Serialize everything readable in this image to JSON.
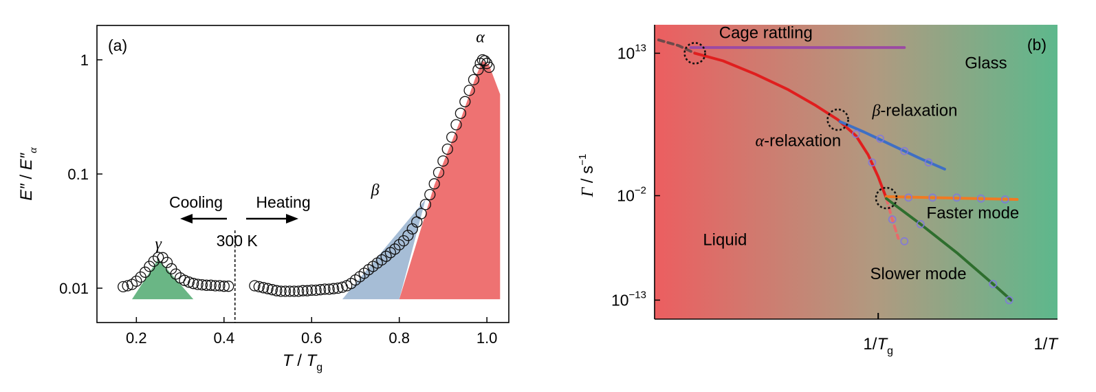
{
  "chart_data": [
    {
      "type": "scatter",
      "panel_label": "(a)",
      "xlabel": "T / Tg",
      "xlabel_parts": {
        "main": "T",
        "sep": " / ",
        "sym": "T",
        "sub": "g"
      },
      "ylabel": "E″ / E″α",
      "ylabel_parts": {
        "num": "E″",
        "sep": " / ",
        "den": "E″",
        "sub": "α"
      },
      "y_scale": "log",
      "xlim": [
        0.11,
        1.05
      ],
      "ylim": [
        0.005,
        2.0
      ],
      "x_ticks": [
        0.2,
        0.4,
        0.6,
        0.8,
        1.0
      ],
      "x_tick_labels": [
        "0.2",
        "0.4",
        "0.6",
        "0.8",
        "1.0"
      ],
      "y_ticks": [
        0.01,
        0.1,
        1
      ],
      "y_tick_labels": [
        "0.01",
        "0.1",
        "1"
      ],
      "grid": false,
      "cooling_label": "Cooling",
      "heating_label": "Heating",
      "divider": {
        "x": 0.425,
        "label": "300 K"
      },
      "peak_labels": {
        "gamma": "γ",
        "beta": "β",
        "alpha": "α"
      },
      "peak_label_pos": {
        "gamma": [
          0.25,
          0.022
        ],
        "beta": [
          0.745,
          0.065
        ],
        "alpha": [
          0.985,
          1.42
        ]
      },
      "peaks": [
        {
          "name": "gamma",
          "color": "#6ab685",
          "base": 0.008,
          "polygon": [
            [
              0.19,
              0.008
            ],
            [
              0.25,
              0.018
            ],
            [
              0.33,
              0.008
            ]
          ]
        },
        {
          "name": "beta",
          "color": "#a6bdd6",
          "base": 0.008,
          "polygon": [
            [
              0.67,
              0.008
            ],
            [
              0.86,
              0.06
            ],
            [
              0.8,
              0.008
            ]
          ]
        },
        {
          "name": "alpha",
          "color": "#ee7272",
          "base": 0.008,
          "polygon": [
            [
              0.8,
              0.008
            ],
            [
              0.88,
              0.08
            ],
            [
              0.94,
              0.3
            ],
            [
              0.975,
              0.72
            ],
            [
              0.99,
              0.98
            ],
            [
              1.005,
              0.9
            ],
            [
              1.03,
              0.5
            ],
            [
              1.03,
              0.008
            ]
          ]
        }
      ],
      "series": [
        {
          "marker": "open-circle",
          "points": [
            [
              0.17,
              0.0103
            ],
            [
              0.18,
              0.0105
            ],
            [
              0.19,
              0.0108
            ],
            [
              0.2,
              0.0115
            ],
            [
              0.21,
              0.0125
            ],
            [
              0.22,
              0.0138
            ],
            [
              0.23,
              0.0155
            ],
            [
              0.24,
              0.0172
            ],
            [
              0.25,
              0.0186
            ],
            [
              0.26,
              0.0185
            ],
            [
              0.27,
              0.0168
            ],
            [
              0.28,
              0.0148
            ],
            [
              0.29,
              0.0133
            ],
            [
              0.3,
              0.0123
            ],
            [
              0.31,
              0.0117
            ],
            [
              0.32,
              0.0113
            ],
            [
              0.33,
              0.011
            ],
            [
              0.34,
              0.0108
            ],
            [
              0.35,
              0.0107
            ],
            [
              0.36,
              0.0106
            ],
            [
              0.37,
              0.0106
            ],
            [
              0.38,
              0.0105
            ],
            [
              0.39,
              0.0105
            ],
            [
              0.4,
              0.0104
            ],
            [
              0.41,
              0.0104
            ],
            [
              0.47,
              0.0105
            ],
            [
              0.48,
              0.0103
            ],
            [
              0.49,
              0.0101
            ],
            [
              0.5,
              0.0099
            ],
            [
              0.51,
              0.0097
            ],
            [
              0.52,
              0.0095
            ],
            [
              0.53,
              0.0094
            ],
            [
              0.54,
              0.0094
            ],
            [
              0.55,
              0.0094
            ],
            [
              0.56,
              0.0094
            ],
            [
              0.57,
              0.0094
            ],
            [
              0.58,
              0.0095
            ],
            [
              0.59,
              0.0095
            ],
            [
              0.6,
              0.0096
            ],
            [
              0.61,
              0.0096
            ],
            [
              0.62,
              0.0097
            ],
            [
              0.63,
              0.0098
            ],
            [
              0.64,
              0.0098
            ],
            [
              0.65,
              0.0099
            ],
            [
              0.66,
              0.01
            ],
            [
              0.67,
              0.0102
            ],
            [
              0.68,
              0.0105
            ],
            [
              0.69,
              0.011
            ],
            [
              0.7,
              0.0118
            ],
            [
              0.71,
              0.0126
            ],
            [
              0.72,
              0.0135
            ],
            [
              0.73,
              0.0145
            ],
            [
              0.74,
              0.0155
            ],
            [
              0.75,
              0.0166
            ],
            [
              0.76,
              0.0177
            ],
            [
              0.77,
              0.019
            ],
            [
              0.78,
              0.0205
            ],
            [
              0.79,
              0.022
            ],
            [
              0.8,
              0.024
            ],
            [
              0.81,
              0.026
            ],
            [
              0.82,
              0.029
            ],
            [
              0.83,
              0.033
            ],
            [
              0.84,
              0.038
            ],
            [
              0.85,
              0.045
            ],
            [
              0.86,
              0.054
            ],
            [
              0.87,
              0.066
            ],
            [
              0.88,
              0.082
            ],
            [
              0.89,
              0.103
            ],
            [
              0.9,
              0.13
            ],
            [
              0.91,
              0.165
            ],
            [
              0.92,
              0.21
            ],
            [
              0.93,
              0.27
            ],
            [
              0.94,
              0.34
            ],
            [
              0.95,
              0.43
            ],
            [
              0.96,
              0.54
            ],
            [
              0.97,
              0.67
            ],
            [
              0.98,
              0.82
            ],
            [
              0.985,
              0.93
            ],
            [
              0.99,
              1.0
            ],
            [
              0.995,
              0.98
            ],
            [
              1.0,
              0.93
            ],
            [
              1.005,
              0.86
            ]
          ]
        }
      ]
    },
    {
      "type": "line",
      "panel_label": "(b)",
      "xlabel": "1/T",
      "xlabel_parts": {
        "main": "1/",
        "sym": "T"
      },
      "x_tick_label": {
        "main": "1/",
        "sym": "T",
        "sub": "g"
      },
      "x_tick_value": 0.555,
      "ylabel": "Γ / s−1",
      "ylabel_parts": {
        "sym": "Γ",
        "sep": " / s",
        "sup": "−1"
      },
      "y_scale": "log",
      "xlim": [
        0,
        1
      ],
      "ylim": [
        -15,
        16
      ],
      "y_ticks": [
        13,
        -2,
        -13
      ],
      "y_tick_labels": [
        {
          "base": "10",
          "exp": "13"
        },
        {
          "base": "10",
          "exp": "−2"
        },
        {
          "base": "10",
          "exp": "−13"
        }
      ],
      "background": {
        "left": "#ec5e60",
        "mid": "#b09a80",
        "right": "#5db88c"
      },
      "region_labels": {
        "liquid": "Liquid",
        "glass": "Glass",
        "cage": "Cage rattling",
        "alpha": "-relaxation",
        "alpha_sym": "α",
        "beta": "-relaxation",
        "beta_sym": "β",
        "faster": "Faster mode",
        "slower": "Slower mode"
      },
      "label_pos": {
        "liquid": [
          0.12,
          -7.2
        ],
        "glass": [
          0.77,
          11.4
        ],
        "cage": [
          0.16,
          14.6
        ],
        "alpha": [
          0.25,
          3.2
        ],
        "beta": [
          0.54,
          6.4
        ],
        "faster": [
          0.675,
          -4.4
        ],
        "slower": [
          0.535,
          -10.8
        ]
      },
      "circles": [
        [
          0.1,
          13.0
        ],
        [
          0.455,
          6.0
        ],
        [
          0.575,
          -2.25
        ]
      ],
      "series": [
        {
          "name": "cage",
          "color": "#9b4aa3",
          "points": [
            [
              0.09,
              13.6
            ],
            [
              0.62,
              13.6
            ]
          ]
        },
        {
          "name": "cage-extrapolation",
          "color": "#6e4a4a",
          "dashed": true,
          "points": [
            [
              0.01,
              14.4
            ],
            [
              0.06,
              13.8
            ],
            [
              0.1,
              13.0
            ]
          ]
        },
        {
          "name": "alpha",
          "color": "#e01e1e",
          "points": [
            [
              0.1,
              13.0
            ],
            [
              0.17,
              12.2
            ],
            [
              0.25,
              10.8
            ],
            [
              0.33,
              9.2
            ],
            [
              0.4,
              7.5
            ],
            [
              0.455,
              6.0
            ],
            [
              0.5,
              4.3
            ],
            [
              0.53,
              2.3
            ],
            [
              0.555,
              0.0
            ],
            [
              0.575,
              -2.25
            ]
          ]
        },
        {
          "name": "alpha-extrapolation",
          "color": "#e86a6a",
          "dashed": true,
          "points": [
            [
              0.575,
              -2.25
            ],
            [
              0.59,
              -4.5
            ],
            [
              0.605,
              -6.5
            ]
          ]
        },
        {
          "name": "beta",
          "color": "#3e6fc4",
          "points": [
            [
              0.46,
              5.8
            ],
            [
              0.52,
              4.7
            ],
            [
              0.59,
              3.3
            ],
            [
              0.66,
              1.9
            ],
            [
              0.72,
              0.8
            ]
          ]
        },
        {
          "name": "faster",
          "color": "#f07a22",
          "points": [
            [
              0.575,
              -2.1
            ],
            [
              0.68,
              -2.2
            ],
            [
              0.8,
              -2.3
            ],
            [
              0.9,
              -2.4
            ]
          ]
        },
        {
          "name": "slower",
          "color": "#2e6e2e",
          "points": [
            [
              0.575,
              -2.3
            ],
            [
              0.66,
              -5.0
            ],
            [
              0.75,
              -8.0
            ],
            [
              0.84,
              -11.3
            ],
            [
              0.885,
              -13.0
            ]
          ]
        }
      ],
      "markers": {
        "color": "#8076e0",
        "points": [
          [
            0.5,
            4.5
          ],
          [
            0.54,
            1.5
          ],
          [
            0.59,
            -4.5
          ],
          [
            0.62,
            -6.8
          ],
          [
            0.66,
            -5.0
          ],
          [
            0.84,
            -11.3
          ],
          [
            0.88,
            -13.0
          ],
          [
            0.56,
            4.0
          ],
          [
            0.62,
            2.7
          ],
          [
            0.68,
            1.5
          ],
          [
            0.63,
            -2.2
          ],
          [
            0.69,
            -2.2
          ],
          [
            0.75,
            -2.2
          ],
          [
            0.81,
            -2.3
          ],
          [
            0.87,
            -2.4
          ]
        ]
      }
    }
  ]
}
